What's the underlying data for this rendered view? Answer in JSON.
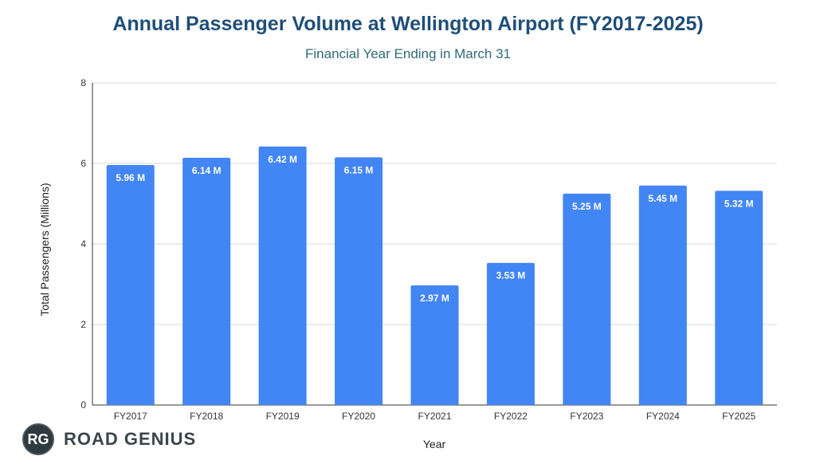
{
  "chart_data": {
    "type": "bar",
    "title": "Annual Passenger Volume at Wellington Airport (FY2017-2025)",
    "subtitle": "Financial Year Ending in March 31",
    "xlabel": "Year",
    "ylabel": "Total Passengers (Millions)",
    "categories": [
      "FY2017",
      "FY2018",
      "FY2019",
      "FY2020",
      "FY2021",
      "FY2022",
      "FY2023",
      "FY2024",
      "FY2025"
    ],
    "values": [
      5.96,
      6.14,
      6.42,
      6.15,
      2.97,
      3.53,
      5.25,
      5.45,
      5.32
    ],
    "data_labels": [
      "5.96 M",
      "6.14 M",
      "6.42 M",
      "6.15 M",
      "2.97 M",
      "3.53 M",
      "5.25 M",
      "5.45 M",
      "5.32 M"
    ],
    "ylim": [
      0,
      8
    ],
    "yticks": [
      "0",
      "2",
      "4",
      "6",
      "8"
    ],
    "ytick_values": [
      0,
      2,
      4,
      6,
      8
    ],
    "grid": true,
    "bar_color": "#4285f4",
    "legend": "none"
  },
  "branding": {
    "logo_initials": "RG",
    "logo_text": "ROAD GENIUS"
  }
}
